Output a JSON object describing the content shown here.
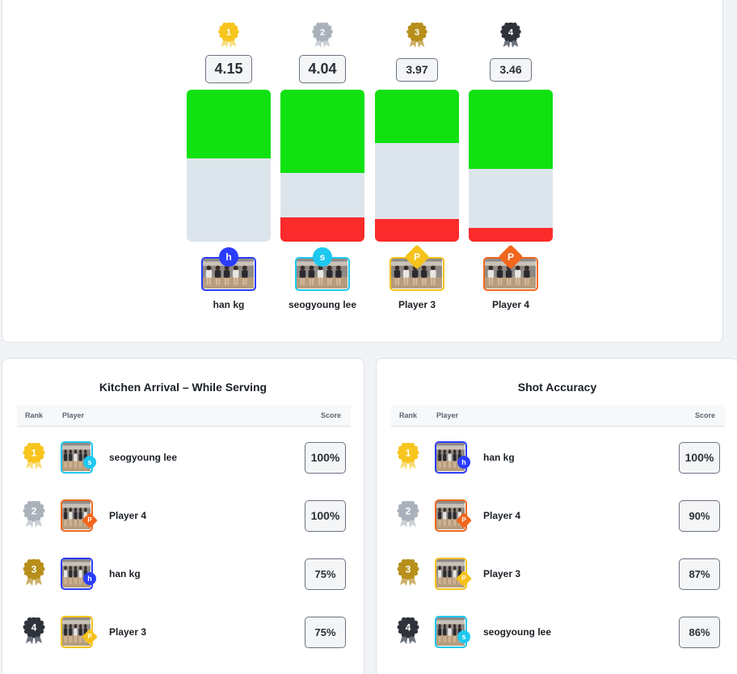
{
  "podium": {
    "columns": [
      {
        "rank": "1",
        "score": "4.15",
        "name": "han kg",
        "initial": "h",
        "green_fraction": 0.45,
        "red_fraction": 0.0,
        "medal": "gold",
        "accent": "#2a3cff",
        "badge_shape": "circle"
      },
      {
        "rank": "2",
        "score": "4.04",
        "name": "seogyoung lee",
        "initial": "s",
        "green_fraction": 0.55,
        "red_fraction": 0.16,
        "medal": "silver",
        "accent": "#1ec8f0",
        "badge_shape": "circle"
      },
      {
        "rank": "3",
        "score": "3.97",
        "name": "Player 3",
        "initial": "P",
        "green_fraction": 0.35,
        "red_fraction": 0.15,
        "medal": "bronze",
        "accent": "#f6c21b",
        "badge_shape": "diamond"
      },
      {
        "rank": "4",
        "score": "3.46",
        "name": "Player 4",
        "initial": "P",
        "green_fraction": 0.52,
        "red_fraction": 0.09,
        "medal": "dark",
        "accent": "#f2661d",
        "badge_shape": "diamond"
      }
    ]
  },
  "kitchen": {
    "title": "Kitchen Arrival – While Serving",
    "headers": {
      "rank": "Rank",
      "player": "Player",
      "score": "Score"
    },
    "rows": [
      {
        "rank": "1",
        "name": "seogyoung lee",
        "score": "100%",
        "initial": "s",
        "medal": "gold",
        "accent": "#1ec8f0",
        "badge_shape": "circle"
      },
      {
        "rank": "2",
        "name": "Player 4",
        "score": "100%",
        "initial": "P",
        "medal": "silver",
        "accent": "#f2661d",
        "badge_shape": "diamond"
      },
      {
        "rank": "3",
        "name": "han kg",
        "score": "75%",
        "initial": "h",
        "medal": "bronze",
        "accent": "#2a3cff",
        "badge_shape": "circle"
      },
      {
        "rank": "4",
        "name": "Player 3",
        "score": "75%",
        "initial": "P",
        "medal": "dark",
        "accent": "#f6c21b",
        "badge_shape": "diamond"
      }
    ]
  },
  "accuracy": {
    "title": "Shot Accuracy",
    "headers": {
      "rank": "Rank",
      "player": "Player",
      "score": "Score"
    },
    "rows": [
      {
        "rank": "1",
        "name": "han kg",
        "score": "100%",
        "initial": "h",
        "medal": "gold",
        "accent": "#2a3cff",
        "badge_shape": "circle"
      },
      {
        "rank": "2",
        "name": "Player 4",
        "score": "90%",
        "initial": "P",
        "medal": "silver",
        "accent": "#f2661d",
        "badge_shape": "diamond"
      },
      {
        "rank": "3",
        "name": "Player 3",
        "score": "87%",
        "initial": "P",
        "medal": "bronze",
        "accent": "#f6c21b",
        "badge_shape": "diamond"
      },
      {
        "rank": "4",
        "name": "seogyoung lee",
        "score": "86%",
        "initial": "s",
        "medal": "dark",
        "accent": "#1ec8f0",
        "badge_shape": "circle"
      }
    ]
  },
  "colors": {
    "gold": "#f7c51d",
    "silver": "#aab1ba",
    "bronze": "#b78f1a",
    "dark": "#2e333b",
    "green": "#11e111",
    "red": "#fb2b2b"
  }
}
